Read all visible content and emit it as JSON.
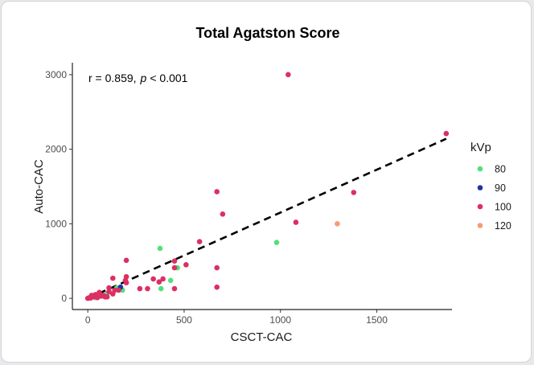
{
  "chart_data": {
    "type": "scatter",
    "title": "Total Agatston Score",
    "xlabel": "CSCT-CAC",
    "ylabel": "Auto-CAC",
    "xlim": [
      -80,
      1890
    ],
    "ylim": [
      -150,
      3160
    ],
    "xticks": [
      0,
      500,
      1000,
      1500
    ],
    "yticks": [
      0,
      1000,
      2000,
      3000
    ],
    "grid": false,
    "annotation": {
      "r_text": "r = 0.859,",
      "p_symbol": "p",
      "p_value": "< 0.001"
    },
    "trendline": {
      "style": "dashed",
      "x": [
        0,
        1860
      ],
      "y": [
        0,
        2140
      ]
    },
    "legend": {
      "title": "kVp",
      "position": "right",
      "entries": [
        {
          "label": "80",
          "color": "#52e07a"
        },
        {
          "label": "90",
          "color": "#1f34a3"
        },
        {
          "label": "100",
          "color": "#dc2f63"
        },
        {
          "label": "120",
          "color": "#f49d74"
        }
      ]
    },
    "series": [
      {
        "name": "80",
        "color": "#52e07a",
        "points": [
          [
            375,
            670
          ],
          [
            430,
            240
          ],
          [
            465,
            410
          ],
          [
            980,
            750
          ],
          [
            380,
            130
          ],
          [
            180,
            110
          ],
          [
            20,
            20
          ],
          [
            60,
            30
          ],
          [
            100,
            60
          ],
          [
            150,
            140
          ],
          [
            40,
            10
          ]
        ]
      },
      {
        "name": "90",
        "color": "#1f34a3",
        "points": [
          [
            170,
            150
          ],
          [
            5,
            5
          ]
        ]
      },
      {
        "name": "100",
        "color": "#dc2f63",
        "points": [
          [
            1040,
            3000
          ],
          [
            1860,
            2210
          ],
          [
            670,
            1430
          ],
          [
            1380,
            1420
          ],
          [
            700,
            1130
          ],
          [
            1080,
            1020
          ],
          [
            580,
            760
          ],
          [
            200,
            510
          ],
          [
            450,
            500
          ],
          [
            510,
            450
          ],
          [
            450,
            410
          ],
          [
            670,
            410
          ],
          [
            200,
            290
          ],
          [
            340,
            260
          ],
          [
            390,
            260
          ],
          [
            370,
            220
          ],
          [
            130,
            270
          ],
          [
            200,
            210
          ],
          [
            110,
            140
          ],
          [
            670,
            150
          ],
          [
            270,
            130
          ],
          [
            310,
            130
          ],
          [
            450,
            130
          ],
          [
            160,
            110
          ],
          [
            110,
            90
          ],
          [
            130,
            60
          ],
          [
            60,
            80
          ],
          [
            40,
            50
          ],
          [
            80,
            40
          ],
          [
            90,
            20
          ],
          [
            20,
            40
          ],
          [
            10,
            10
          ],
          [
            30,
            20
          ],
          [
            50,
            10
          ],
          [
            70,
            30
          ],
          [
            0,
            0
          ],
          [
            15,
            5
          ],
          [
            100,
            20
          ],
          [
            140,
            110
          ],
          [
            195,
            240
          ]
        ]
      },
      {
        "name": "120",
        "color": "#f49d74",
        "points": [
          [
            1295,
            1000
          ]
        ]
      }
    ]
  }
}
